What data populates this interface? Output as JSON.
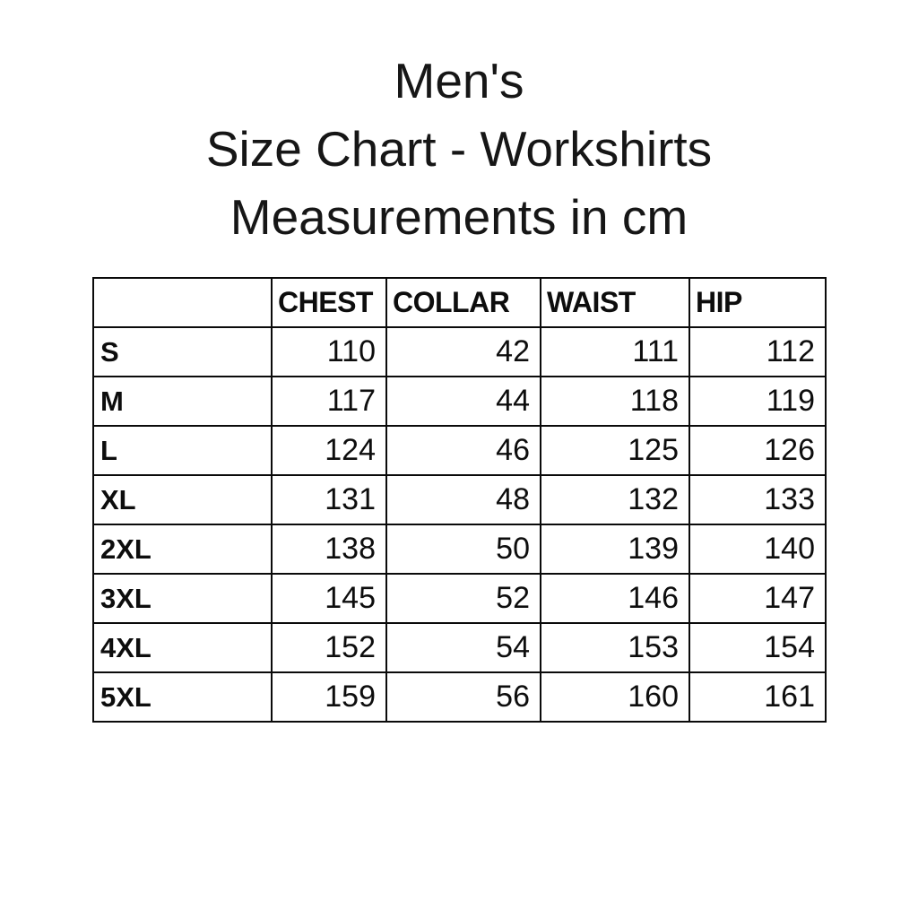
{
  "title": {
    "line1": "Men's",
    "line2": "Size Chart - Workshirts",
    "line3": "Measurements in cm"
  },
  "table": {
    "headers": [
      "",
      "CHEST",
      "COLLAR",
      "WAIST",
      "HIP"
    ],
    "rows": [
      {
        "size": "S",
        "chest": "110",
        "collar": "42",
        "waist": "111",
        "hip": "112"
      },
      {
        "size": "M",
        "chest": "117",
        "collar": "44",
        "waist": "118",
        "hip": "119"
      },
      {
        "size": "L",
        "chest": "124",
        "collar": "46",
        "waist": "125",
        "hip": "126"
      },
      {
        "size": "XL",
        "chest": "131",
        "collar": "48",
        "waist": "132",
        "hip": "133"
      },
      {
        "size": "2XL",
        "chest": "138",
        "collar": "50",
        "waist": "139",
        "hip": "140"
      },
      {
        "size": "3XL",
        "chest": "145",
        "collar": "52",
        "waist": "146",
        "hip": "147"
      },
      {
        "size": "4XL",
        "chest": "152",
        "collar": "54",
        "waist": "153",
        "hip": "154"
      },
      {
        "size": "5XL",
        "chest": "159",
        "collar": "56",
        "waist": "160",
        "hip": "161"
      }
    ]
  },
  "colors": {
    "background": "#ffffff",
    "text": "#0d0d0d",
    "border": "#0a0a0a"
  },
  "chart_data": {
    "type": "table",
    "title": "Men's Size Chart - Workshirts",
    "subtitle": "Measurements in cm",
    "columns": [
      "",
      "CHEST",
      "COLLAR",
      "WAIST",
      "HIP"
    ],
    "rows": [
      [
        "S",
        110,
        42,
        111,
        112
      ],
      [
        "M",
        117,
        44,
        118,
        119
      ],
      [
        "L",
        124,
        46,
        125,
        126
      ],
      [
        "XL",
        131,
        48,
        132,
        133
      ],
      [
        "2XL",
        138,
        50,
        139,
        140
      ],
      [
        "3XL",
        145,
        52,
        146,
        147
      ],
      [
        "4XL",
        152,
        54,
        153,
        154
      ],
      [
        "5XL",
        159,
        56,
        160,
        161
      ]
    ]
  }
}
